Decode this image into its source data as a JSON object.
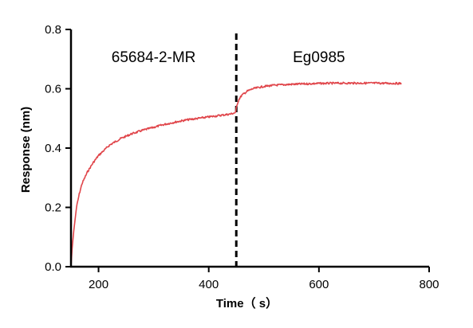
{
  "chart_data": {
    "type": "line",
    "xlabel": "Time（ s）",
    "ylabel": "Response (nm)",
    "xlim": [
      150,
      800
    ],
    "ylim": [
      0,
      0.8
    ],
    "xticks": [
      "200",
      "400",
      "600",
      "800"
    ],
    "yticks": [
      "0.0",
      "0.2",
      "0.4",
      "0.6",
      "0.8"
    ],
    "grid": false,
    "legend": "none",
    "divider_x": 450,
    "divider_style": "dashed",
    "annotations": [
      {
        "text": "65684-2-MR",
        "x": 300,
        "y": 0.69
      },
      {
        "text": "Eg0985",
        "x": 600,
        "y": 0.69
      }
    ],
    "series": [
      {
        "color": "#e0454a",
        "x": [
          150,
          152,
          155,
          160,
          165,
          170,
          180,
          190,
          200,
          220,
          240,
          260,
          280,
          300,
          320,
          340,
          360,
          380,
          400,
          420,
          440,
          449,
          450,
          452,
          455,
          460,
          470,
          480,
          500,
          520,
          550,
          600,
          650,
          700,
          750
        ],
        "y": [
          0.0,
          0.06,
          0.12,
          0.2,
          0.245,
          0.28,
          0.32,
          0.35,
          0.375,
          0.41,
          0.432,
          0.448,
          0.46,
          0.47,
          0.48,
          0.488,
          0.495,
          0.5,
          0.505,
          0.51,
          0.515,
          0.52,
          0.535,
          0.55,
          0.565,
          0.578,
          0.592,
          0.6,
          0.608,
          0.612,
          0.615,
          0.618,
          0.619,
          0.619,
          0.618
        ]
      }
    ]
  }
}
